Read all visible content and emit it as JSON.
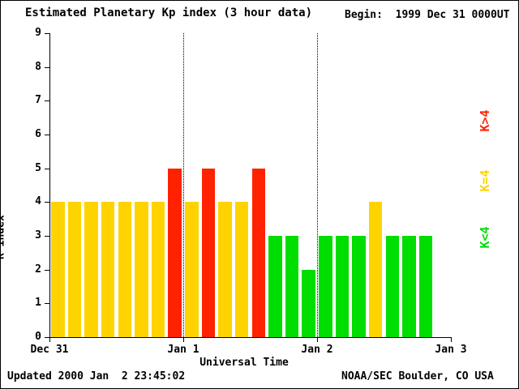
{
  "header": {
    "title": "Estimated Planetary Kp index (3 hour data)",
    "begin_label": "Begin:  1999 Dec 31 0000UT"
  },
  "footer": {
    "updated": "Updated 2000 Jan  2 23:45:02",
    "source": "NOAA/SEC Boulder, CO USA"
  },
  "chart_data": {
    "type": "bar",
    "title": "Estimated Planetary Kp index (3 hour data)",
    "begin": "1999 Dec 31 0000UT",
    "xlabel": "Universal Time",
    "ylabel": "K index",
    "ylim": [
      0,
      9
    ],
    "y_ticks": [
      0,
      1,
      2,
      3,
      4,
      5,
      6,
      7,
      8,
      9
    ],
    "hours_per_bar": 3,
    "total_hours": 72,
    "x_ticks": [
      {
        "hour": 0,
        "label": "Dec 31"
      },
      {
        "hour": 24,
        "label": "Jan 1"
      },
      {
        "hour": 48,
        "label": "Jan 2"
      },
      {
        "hour": 72,
        "label": "Jan 3"
      }
    ],
    "day_dividers_hours": [
      24,
      48
    ],
    "values": [
      4,
      4,
      4,
      4,
      4,
      4,
      4,
      5,
      4,
      5,
      4,
      4,
      5,
      3,
      3,
      2,
      3,
      3,
      3,
      4,
      3,
      3,
      3
    ],
    "colors": {
      "high": "#ff2200",
      "mid": "#ffd300",
      "low": "#00dd00"
    },
    "color_rule": "high if K>4, mid if K=4, low if K<4",
    "legend": [
      {
        "label": "K>4",
        "color_key": "high"
      },
      {
        "label": "K=4",
        "color_key": "mid"
      },
      {
        "label": "K<4",
        "color_key": "low"
      }
    ]
  }
}
